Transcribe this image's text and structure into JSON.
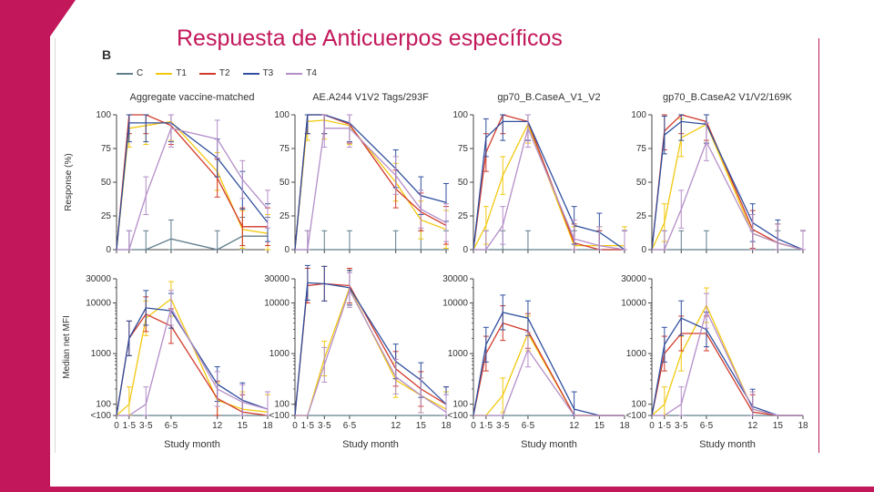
{
  "slide": {
    "title": "Respuesta de Anticuerpos específicos",
    "panel_letter": "B"
  },
  "colors": {
    "accent": "#c2185b",
    "C": "#607d8b",
    "T1": "#f2c80f",
    "T2": "#d1392b",
    "T3": "#2f4f9e",
    "T4": "#b48ec8"
  },
  "legend": [
    {
      "name": "C",
      "color": "#607d8b"
    },
    {
      "name": "T1",
      "color": "#f2c80f"
    },
    {
      "name": "T2",
      "color": "#d1392b"
    },
    {
      "name": "T3",
      "color": "#2f4f9e"
    },
    {
      "name": "T4",
      "color": "#b48ec8"
    }
  ],
  "chart_data": [
    {
      "type": "line",
      "title": "Aggregate vaccine-matched",
      "ylabel": "Response (%)",
      "xlabel": "",
      "x": [
        0,
        1.5,
        3.5,
        6.5,
        12,
        15,
        18
      ],
      "x_tick_labels": [
        "0",
        "1·5",
        "3·5",
        "6·5",
        "12",
        "15",
        "18"
      ],
      "y_ticks": [
        "0",
        "25",
        "50",
        "75",
        "100"
      ],
      "ylim": [
        0,
        100
      ],
      "series": [
        {
          "name": "C",
          "values": [
            0,
            0,
            0,
            8,
            0,
            10,
            10
          ]
        },
        {
          "name": "T1",
          "values": [
            0,
            90,
            92,
            95,
            58,
            15,
            12
          ]
        },
        {
          "name": "T2",
          "values": [
            0,
            100,
            100,
            92,
            53,
            17,
            17
          ]
        },
        {
          "name": "T3",
          "values": [
            0,
            94,
            94,
            94,
            68,
            44,
            20
          ]
        },
        {
          "name": "T4",
          "values": [
            0,
            0,
            40,
            90,
            82,
            52,
            30
          ]
        }
      ]
    },
    {
      "type": "line",
      "title": "AE.A244 V1V2 Tags/293F",
      "ylabel": "",
      "xlabel": "",
      "x": [
        0,
        1.5,
        3.5,
        6.5,
        12,
        15,
        18
      ],
      "x_tick_labels": [
        "0",
        "1·5",
        "3·5",
        "6·5",
        "12",
        "15",
        "18"
      ],
      "y_ticks": [
        "0",
        "25",
        "50",
        "75",
        "100"
      ],
      "ylim": [
        0,
        100
      ],
      "series": [
        {
          "name": "C",
          "values": [
            0,
            0,
            0,
            0,
            0,
            0,
            0
          ]
        },
        {
          "name": "T1",
          "values": [
            0,
            95,
            96,
            92,
            50,
            22,
            15
          ]
        },
        {
          "name": "T2",
          "values": [
            0,
            100,
            100,
            93,
            45,
            28,
            18
          ]
        },
        {
          "name": "T3",
          "values": [
            0,
            100,
            100,
            94,
            60,
            40,
            35
          ]
        },
        {
          "name": "T4",
          "values": [
            0,
            0,
            90,
            90,
            55,
            30,
            20
          ]
        }
      ]
    },
    {
      "type": "line",
      "title": "gp70_B.CaseA_V1_V2",
      "ylabel": "",
      "xlabel": "",
      "x": [
        0,
        1.5,
        3.5,
        6.5,
        12,
        15,
        18
      ],
      "x_tick_labels": [
        "0",
        "1·5",
        "3·5",
        "6·5",
        "12",
        "15",
        "18"
      ],
      "y_ticks": [
        "0",
        "25",
        "50",
        "75",
        "100"
      ],
      "ylim": [
        0,
        100
      ],
      "series": [
        {
          "name": "C",
          "values": [
            0,
            0,
            0,
            0,
            0,
            0,
            0
          ]
        },
        {
          "name": "T1",
          "values": [
            0,
            18,
            55,
            93,
            3,
            3,
            3
          ]
        },
        {
          "name": "T2",
          "values": [
            0,
            72,
            100,
            95,
            5,
            0,
            0
          ]
        },
        {
          "name": "T3",
          "values": [
            0,
            83,
            95,
            95,
            18,
            13,
            0
          ]
        },
        {
          "name": "T4",
          "values": [
            0,
            0,
            18,
            90,
            8,
            3,
            0
          ]
        }
      ]
    },
    {
      "type": "line",
      "title": "gp70_B.CaseA2 V1/V2/169K",
      "ylabel": "",
      "xlabel": "",
      "x": [
        0,
        1.5,
        3.5,
        6.5,
        12,
        15,
        18
      ],
      "x_tick_labels": [
        "0",
        "1·5",
        "3·5",
        "6·5",
        "12",
        "15",
        "18"
      ],
      "y_ticks": [
        "0",
        "25",
        "50",
        "75",
        "100"
      ],
      "ylim": [
        0,
        100
      ],
      "series": [
        {
          "name": "C",
          "values": [
            0,
            0,
            0,
            0,
            0,
            0,
            0
          ]
        },
        {
          "name": "T1",
          "values": [
            0,
            20,
            83,
            93,
            12,
            5,
            0
          ]
        },
        {
          "name": "T2",
          "values": [
            0,
            88,
            100,
            95,
            15,
            5,
            0
          ]
        },
        {
          "name": "T3",
          "values": [
            0,
            85,
            95,
            93,
            20,
            8,
            0
          ]
        },
        {
          "name": "T4",
          "values": [
            0,
            0,
            30,
            80,
            12,
            5,
            0
          ]
        }
      ]
    },
    {
      "type": "line",
      "title": "",
      "ylabel": "Median net MFI",
      "xlabel": "Study month",
      "yscale": "log",
      "x": [
        0,
        1.5,
        3.5,
        6.5,
        12,
        15,
        18
      ],
      "x_tick_labels": [
        "0",
        "1·5",
        "3·5",
        "6·5",
        "12",
        "15",
        "18"
      ],
      "y_ticks": [
        "<100",
        "100",
        "1000",
        "10000",
        "30000"
      ],
      "ylim": [
        60,
        30000
      ],
      "series": [
        {
          "name": "C",
          "values": [
            60,
            60,
            60,
            60,
            60,
            60,
            60
          ]
        },
        {
          "name": "T1",
          "values": [
            60,
            100,
            5000,
            12000,
            120,
            80,
            70
          ]
        },
        {
          "name": "T2",
          "values": [
            60,
            2000,
            6000,
            3500,
            130,
            70,
            60
          ]
        },
        {
          "name": "T3",
          "values": [
            60,
            2000,
            8000,
            7000,
            250,
            120,
            80
          ]
        },
        {
          "name": "T4",
          "values": [
            60,
            60,
            100,
            8000,
            200,
            110,
            80
          ]
        }
      ]
    },
    {
      "type": "line",
      "title": "",
      "ylabel": "",
      "xlabel": "Study month",
      "yscale": "log",
      "x": [
        0,
        1.5,
        3.5,
        6.5,
        12,
        15,
        18
      ],
      "x_tick_labels": [
        "0",
        "1·5",
        "3·5",
        "6·5",
        "12",
        "15",
        "18"
      ],
      "y_ticks": [
        "<100",
        "100",
        "1000",
        "10000",
        "30000"
      ],
      "ylim": [
        60,
        30000
      ],
      "series": [
        {
          "name": "C",
          "values": [
            60,
            60,
            60,
            60,
            60,
            60,
            60
          ]
        },
        {
          "name": "T1",
          "values": [
            60,
            60,
            800,
            20000,
            300,
            150,
            80
          ]
        },
        {
          "name": "T2",
          "values": [
            60,
            22000,
            24000,
            22000,
            500,
            200,
            100
          ]
        },
        {
          "name": "T3",
          "values": [
            60,
            25000,
            24000,
            20000,
            700,
            300,
            100
          ]
        },
        {
          "name": "T4",
          "values": [
            60,
            60,
            600,
            18000,
            350,
            150,
            70
          ]
        }
      ]
    },
    {
      "type": "line",
      "title": "",
      "ylabel": "",
      "xlabel": "Study month",
      "yscale": "log",
      "x": [
        0,
        1.5,
        3.5,
        6.5,
        12,
        15,
        18
      ],
      "x_tick_labels": [
        "0",
        "1·5",
        "3·5",
        "6·5",
        "12",
        "15",
        "18"
      ],
      "y_ticks": [
        "<100",
        "100",
        "1000",
        "10000",
        "30000"
      ],
      "ylim": [
        60,
        30000
      ],
      "series": [
        {
          "name": "C",
          "values": [
            60,
            60,
            60,
            60,
            60,
            60,
            60
          ]
        },
        {
          "name": "T1",
          "values": [
            60,
            60,
            150,
            2500,
            60,
            60,
            60
          ]
        },
        {
          "name": "T2",
          "values": [
            60,
            1000,
            4000,
            2800,
            60,
            60,
            60
          ]
        },
        {
          "name": "T3",
          "values": [
            60,
            1500,
            6500,
            5000,
            80,
            60,
            60
          ]
        },
        {
          "name": "T4",
          "values": [
            60,
            60,
            60,
            1200,
            60,
            60,
            60
          ]
        }
      ]
    },
    {
      "type": "line",
      "title": "",
      "ylabel": "",
      "xlabel": "Study month",
      "yscale": "log",
      "x": [
        0,
        1.5,
        3.5,
        6.5,
        12,
        15,
        18
      ],
      "x_tick_labels": [
        "0",
        "1·5",
        "3·5",
        "6·5",
        "12",
        "15",
        "18"
      ],
      "y_ticks": [
        "<100",
        "100",
        "1000",
        "10000",
        "30000"
      ],
      "ylim": [
        60,
        30000
      ],
      "series": [
        {
          "name": "C",
          "values": [
            60,
            60,
            60,
            60,
            60,
            60,
            60
          ]
        },
        {
          "name": "T1",
          "values": [
            60,
            100,
            1000,
            9000,
            80,
            60,
            60
          ]
        },
        {
          "name": "T2",
          "values": [
            60,
            1000,
            2500,
            2500,
            70,
            60,
            60
          ]
        },
        {
          "name": "T3",
          "values": [
            60,
            1500,
            5000,
            3000,
            90,
            60,
            60
          ]
        },
        {
          "name": "T4",
          "values": [
            60,
            60,
            100,
            7000,
            80,
            60,
            60
          ]
        }
      ]
    }
  ]
}
